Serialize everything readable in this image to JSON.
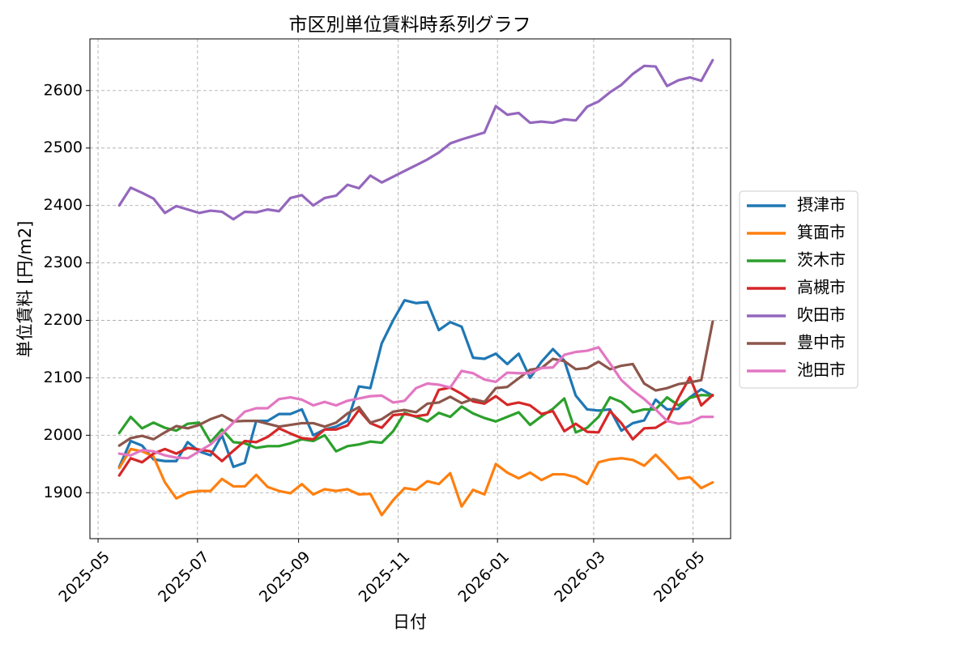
{
  "chart_data": {
    "type": "line",
    "title": "市区別単位賃料時系列グラフ",
    "xlabel": "日付",
    "ylabel": "単位賃料 [円/m2]",
    "x_start": "2025-05-14",
    "x_step_days": 7,
    "xlim": [
      "2025-04-26",
      "2026-05-24"
    ],
    "xticks": [
      "2025-05-01",
      "2025-07-01",
      "2025-09-01",
      "2025-11-01",
      "2026-01-01",
      "2026-03-01",
      "2026-05-01"
    ],
    "xtick_labels": [
      "2025-05",
      "2025-07",
      "2025-09",
      "2025-11",
      "2026-01",
      "2026-03",
      "2026-05"
    ],
    "ylim": [
      1820,
      2690
    ],
    "yticks": [
      1900,
      2000,
      2100,
      2200,
      2300,
      2400,
      2500,
      2600
    ],
    "grid": true,
    "legend_position": "right-outside",
    "series": [
      {
        "name": "摂津市",
        "color": "#1f77b4",
        "values": [
          1945,
          1990,
          1982,
          1958,
          1955,
          1955,
          1988,
          1972,
          1965,
          2000,
          1945,
          1952,
          2025,
          2025,
          2037,
          2037,
          2045,
          2000,
          2010,
          2015,
          2025,
          2085,
          2082,
          2160,
          2200,
          2235,
          2230,
          2232,
          2183,
          2197,
          2189,
          2135,
          2133,
          2142,
          2124,
          2142,
          2100,
          2128,
          2150,
          2130,
          2069,
          2045,
          2043,
          2045,
          2008,
          2021,
          2026,
          2062,
          2045,
          2046,
          2066,
          2080,
          2069
        ]
      },
      {
        "name": "箕面市",
        "color": "#ff7f0e",
        "values": [
          1943,
          1976,
          1972,
          1963,
          1918,
          1890,
          1900,
          1903,
          1903,
          1924,
          1911,
          1911,
          1931,
          1910,
          1903,
          1899,
          1915,
          1897,
          1906,
          1903,
          1906,
          1897,
          1898,
          1861,
          1887,
          1908,
          1905,
          1920,
          1915,
          1934,
          1876,
          1905,
          1897,
          1950,
          1935,
          1925,
          1935,
          1922,
          1932,
          1932,
          1927,
          1915,
          1953,
          1958,
          1960,
          1957,
          1947,
          1966,
          1946,
          1924,
          1927,
          1908,
          1918
        ]
      },
      {
        "name": "茨木市",
        "color": "#2ca02c",
        "values": [
          2004,
          2032,
          2012,
          2022,
          2013,
          2008,
          2020,
          2022,
          1988,
          2010,
          1988,
          1986,
          1978,
          1981,
          1981,
          1986,
          1993,
          1990,
          2000,
          1972,
          1981,
          1984,
          1989,
          1987,
          2007,
          2039,
          2032,
          2024,
          2039,
          2032,
          2050,
          2038,
          2030,
          2024,
          2032,
          2040,
          2018,
          2033,
          2046,
          2064,
          2005,
          2013,
          2032,
          2066,
          2058,
          2040,
          2045,
          2045,
          2066,
          2052,
          2065,
          2070,
          2069
        ]
      },
      {
        "name": "高槻市",
        "color": "#d62728",
        "values": [
          1930,
          1960,
          1953,
          1968,
          1976,
          1968,
          1978,
          1975,
          1972,
          1955,
          1973,
          1990,
          1988,
          1997,
          2012,
          2003,
          1995,
          1993,
          2010,
          2010,
          2017,
          2044,
          2021,
          2013,
          2035,
          2037,
          2033,
          2036,
          2079,
          2083,
          2072,
          2059,
          2055,
          2068,
          2053,
          2057,
          2052,
          2037,
          2042,
          2007,
          2020,
          2006,
          2005,
          2042,
          2021,
          1993,
          2012,
          2013,
          2025,
          2065,
          2101,
          2052,
          2070
        ]
      },
      {
        "name": "吹田市",
        "color": "#9467bd",
        "values": [
          2400,
          2431,
          2422,
          2412,
          2387,
          2399,
          2393,
          2387,
          2391,
          2389,
          2376,
          2389,
          2388,
          2393,
          2390,
          2413,
          2418,
          2400,
          2413,
          2417,
          2436,
          2430,
          2452,
          2440,
          2450,
          2460,
          2470,
          2480,
          2492,
          2508,
          2515,
          2521,
          2527,
          2573,
          2558,
          2561,
          2544,
          2546,
          2544,
          2550,
          2548,
          2572,
          2581,
          2597,
          2610,
          2629,
          2643,
          2642,
          2608,
          2618,
          2623,
          2617,
          2653
        ]
      },
      {
        "name": "豊中市",
        "color": "#8c564b",
        "values": [
          1982,
          1995,
          1999,
          1993,
          2005,
          2016,
          2012,
          2018,
          2028,
          2035,
          2024,
          2025,
          2025,
          2020,
          2015,
          2018,
          2021,
          2021,
          2015,
          2022,
          2038,
          2049,
          2022,
          2028,
          2041,
          2044,
          2040,
          2055,
          2057,
          2067,
          2056,
          2063,
          2058,
          2082,
          2084,
          2099,
          2114,
          2117,
          2133,
          2129,
          2115,
          2117,
          2128,
          2115,
          2121,
          2124,
          2090,
          2078,
          2082,
          2089,
          2092,
          2096,
          2198
        ]
      },
      {
        "name": "池田市",
        "color": "#e377c2",
        "values": [
          1968,
          1965,
          1974,
          1972,
          1965,
          1961,
          1960,
          1972,
          1984,
          2002,
          2022,
          2041,
          2047,
          2047,
          2063,
          2066,
          2062,
          2052,
          2058,
          2052,
          2060,
          2064,
          2068,
          2069,
          2057,
          2060,
          2082,
          2090,
          2088,
          2083,
          2112,
          2108,
          2097,
          2093,
          2109,
          2108,
          2108,
          2117,
          2118,
          2140,
          2145,
          2147,
          2153,
          2125,
          2096,
          2078,
          2063,
          2045,
          2025,
          2020,
          2022,
          2032,
          2032
        ]
      }
    ]
  }
}
